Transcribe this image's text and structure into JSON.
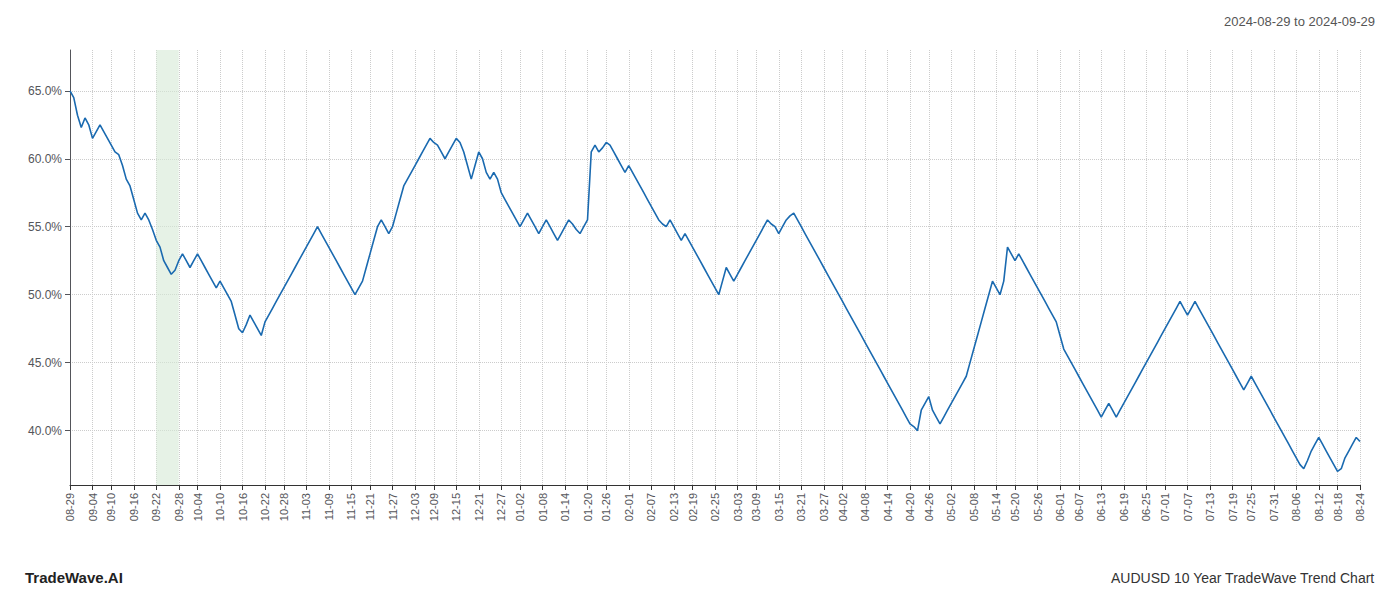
{
  "chart_data": {
    "type": "line",
    "title": "AUDUSD 10 Year TradeWave Trend Chart",
    "subtitle": "2024-08-29 to 2024-09-29",
    "annotations": [
      "TradeWave.AI"
    ],
    "categories": [
      "08-29",
      null,
      null,
      null,
      null,
      null,
      "09-04",
      null,
      null,
      null,
      null,
      "09-10",
      null,
      null,
      null,
      null,
      null,
      "09-16",
      null,
      null,
      null,
      null,
      null,
      "09-22",
      null,
      null,
      null,
      null,
      null,
      "09-28",
      null,
      null,
      null,
      null,
      "10-04",
      null,
      null,
      null,
      null,
      null,
      "10-10",
      null,
      null,
      null,
      null,
      null,
      "10-16",
      null,
      null,
      null,
      null,
      null,
      "10-22",
      null,
      null,
      null,
      null,
      "10-28",
      null,
      null,
      null,
      null,
      null,
      "11-03",
      null,
      null,
      null,
      null,
      null,
      "11-09",
      null,
      null,
      null,
      null,
      null,
      "11-15",
      null,
      null,
      null,
      null,
      "11-21",
      null,
      null,
      null,
      null,
      null,
      "11-27",
      null,
      null,
      null,
      null,
      null,
      "12-03",
      null,
      null,
      null,
      null,
      "12-09",
      null,
      null,
      null,
      null,
      null,
      "12-15",
      null,
      null,
      null,
      null,
      null,
      "12-21",
      null,
      null,
      null,
      null,
      null,
      "12-27",
      null,
      null,
      null,
      null,
      "01-02",
      null,
      null,
      null,
      null,
      null,
      "01-08",
      null,
      null,
      null,
      null,
      null,
      "01-14",
      null,
      null,
      null,
      null,
      null,
      "01-20",
      null,
      null,
      null,
      null,
      "01-26",
      null,
      null,
      null,
      null,
      null,
      "02-01",
      null,
      null,
      null,
      null,
      null,
      "02-07",
      null,
      null,
      null,
      null,
      null,
      "02-13",
      null,
      null,
      null,
      null,
      "02-19",
      null,
      null,
      null,
      null,
      null,
      "02-25",
      null,
      null,
      null,
      null,
      null,
      "03-03",
      null,
      null,
      null,
      null,
      "03-09",
      null,
      null,
      null,
      null,
      null,
      "03-15",
      null,
      null,
      null,
      null,
      null,
      "03-21",
      null,
      null,
      null,
      null,
      null,
      "03-27",
      null,
      null,
      null,
      null,
      "04-02",
      null,
      null,
      null,
      null,
      null,
      "04-08",
      null,
      null,
      null,
      null,
      null,
      "04-14",
      null,
      null,
      null,
      null,
      null,
      "04-20",
      null,
      null,
      null,
      null,
      "04-26",
      null,
      null,
      null,
      null,
      null,
      "05-02",
      null,
      null,
      null,
      null,
      null,
      "05-08",
      null,
      null,
      null,
      null,
      null,
      "05-14",
      null,
      null,
      null,
      null,
      "05-20",
      null,
      null,
      null,
      null,
      null,
      "05-26",
      null,
      null,
      null,
      null,
      null,
      "06-01",
      null,
      null,
      null,
      null,
      "06-07",
      null,
      null,
      null,
      null,
      null,
      "06-13",
      null,
      null,
      null,
      null,
      null,
      "06-19",
      null,
      null,
      null,
      null,
      null,
      "06-25",
      null,
      null,
      null,
      null,
      "07-01",
      null,
      null,
      null,
      null,
      null,
      "07-07",
      null,
      null,
      null,
      null,
      null,
      "07-13",
      null,
      null,
      null,
      null,
      null,
      "07-19",
      null,
      null,
      null,
      null,
      "07-25",
      null,
      null,
      null,
      null,
      null,
      "07-31",
      null,
      null,
      null,
      null,
      null,
      "08-06",
      null,
      null,
      null,
      null,
      null,
      "08-12",
      null,
      null,
      null,
      null,
      "08-18",
      null,
      null,
      null,
      null,
      null,
      "08-24"
    ],
    "values": [
      65.0,
      64.5,
      63.2,
      62.3,
      63.0,
      62.5,
      61.5,
      62.0,
      62.5,
      62.0,
      61.5,
      61.0,
      60.5,
      60.3,
      59.5,
      58.5,
      58.0,
      57.0,
      56.0,
      55.5,
      56.0,
      55.5,
      54.8,
      54.0,
      53.5,
      52.5,
      52.0,
      51.5,
      51.8,
      52.5,
      53.0,
      52.5,
      52.0,
      52.5,
      53.0,
      52.5,
      52.0,
      51.5,
      51.0,
      50.5,
      51.0,
      50.5,
      50.0,
      49.5,
      48.5,
      47.5,
      47.2,
      47.8,
      48.5,
      48.0,
      47.5,
      47.0,
      48.0,
      48.5,
      49.0,
      49.5,
      50.0,
      50.5,
      51.0,
      51.5,
      52.0,
      52.5,
      53.0,
      53.5,
      54.0,
      54.5,
      55.0,
      54.5,
      54.0,
      53.5,
      53.0,
      52.5,
      52.0,
      51.5,
      51.0,
      50.5,
      50.0,
      50.5,
      51.0,
      52.0,
      53.0,
      54.0,
      55.0,
      55.5,
      55.0,
      54.5,
      55.0,
      56.0,
      57.0,
      58.0,
      58.5,
      59.0,
      59.5,
      60.0,
      60.5,
      61.0,
      61.5,
      61.2,
      61.0,
      60.5,
      60.0,
      60.5,
      61.0,
      61.5,
      61.2,
      60.5,
      59.5,
      58.5,
      59.5,
      60.5,
      60.0,
      59.0,
      58.5,
      59.0,
      58.5,
      57.5,
      57.0,
      56.5,
      56.0,
      55.5,
      55.0,
      55.5,
      56.0,
      55.5,
      55.0,
      54.5,
      55.0,
      55.5,
      55.0,
      54.5,
      54.0,
      54.5,
      55.0,
      55.5,
      55.2,
      54.8,
      54.5,
      55.0,
      55.5,
      60.5,
      61.0,
      60.5,
      60.8,
      61.2,
      61.0,
      60.5,
      60.0,
      59.5,
      59.0,
      59.5,
      59.0,
      58.5,
      58.0,
      57.5,
      57.0,
      56.5,
      56.0,
      55.5,
      55.2,
      55.0,
      55.5,
      55.0,
      54.5,
      54.0,
      54.5,
      54.0,
      53.5,
      53.0,
      52.5,
      52.0,
      51.5,
      51.0,
      50.5,
      50.0,
      51.0,
      52.0,
      51.5,
      51.0,
      51.5,
      52.0,
      52.5,
      53.0,
      53.5,
      54.0,
      54.5,
      55.0,
      55.5,
      55.2,
      55.0,
      54.5,
      55.0,
      55.5,
      55.8,
      56.0,
      55.5,
      55.0,
      54.5,
      54.0,
      53.5,
      53.0,
      52.5,
      52.0,
      51.5,
      51.0,
      50.5,
      50.0,
      49.5,
      49.0,
      48.5,
      48.0,
      47.5,
      47.0,
      46.5,
      46.0,
      45.5,
      45.0,
      44.5,
      44.0,
      43.5,
      43.0,
      42.5,
      42.0,
      41.5,
      41.0,
      40.5,
      40.3,
      40.0,
      41.5,
      42.0,
      42.5,
      41.5,
      41.0,
      40.5,
      41.0,
      41.5,
      42.0,
      42.5,
      43.0,
      43.5,
      44.0,
      45.0,
      46.0,
      47.0,
      48.0,
      49.0,
      50.0,
      51.0,
      50.5,
      50.0,
      51.0,
      53.5,
      53.0,
      52.5,
      53.0,
      52.5,
      52.0,
      51.5,
      51.0,
      50.5,
      50.0,
      49.5,
      49.0,
      48.5,
      48.0,
      47.0,
      46.0,
      45.5,
      45.0,
      44.5,
      44.0,
      43.5,
      43.0,
      42.5,
      42.0,
      41.5,
      41.0,
      41.5,
      42.0,
      41.5,
      41.0,
      41.5,
      42.0,
      42.5,
      43.0,
      43.5,
      44.0,
      44.5,
      45.0,
      45.5,
      46.0,
      46.5,
      47.0,
      47.5,
      48.0,
      48.5,
      49.0,
      49.5,
      49.0,
      48.5,
      49.0,
      49.5,
      49.0,
      48.5,
      48.0,
      47.5,
      47.0,
      46.5,
      46.0,
      45.5,
      45.0,
      44.5,
      44.0,
      43.5,
      43.0,
      43.5,
      44.0,
      43.5,
      43.0,
      42.5,
      42.0,
      41.5,
      41.0,
      40.5,
      40.0,
      39.5,
      39.0,
      38.5,
      38.0,
      37.5,
      37.2,
      37.8,
      38.5,
      39.0,
      39.5,
      39.0,
      38.5,
      38.0,
      37.5,
      37.0,
      37.2,
      38.0,
      38.5,
      39.0,
      39.5,
      39.2
    ],
    "color": "#1a6ab0",
    "shade": {
      "from": "09-22",
      "to": "09-28",
      "color": "#d6ead6"
    },
    "ylim": [
      36,
      68
    ],
    "yticks": [
      {
        "value": 40.0,
        "label": "40.0%"
      },
      {
        "value": 45.0,
        "label": "45.0%"
      },
      {
        "value": 50.0,
        "label": "50.0%"
      },
      {
        "value": 55.0,
        "label": "55.0%"
      },
      {
        "value": 60.0,
        "label": "60.0%"
      },
      {
        "value": 65.0,
        "label": "65.0%"
      }
    ],
    "grid": true
  }
}
